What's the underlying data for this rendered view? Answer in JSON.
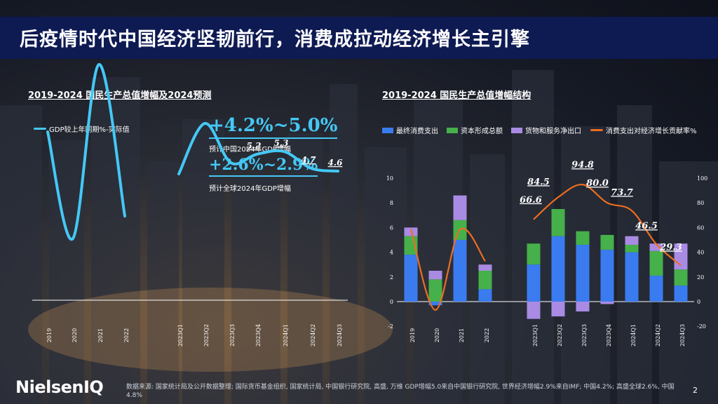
{
  "title": "后疫情时代中国经济坚韧前行，消费成拉动经济增长主引擎",
  "left": {
    "section_title": "2019-2024 国民生产总值增幅及2024预测",
    "legend_label": "GDP较上年同期%-实际值",
    "stat1": "+4.2%~5.0%",
    "stat1_caption": "预计中国2024年GDP增幅",
    "stat2": "+2.6%~2.9%",
    "stat2_caption": "预计全球2024年GDP增幅"
  },
  "right": {
    "section_title": "2019-2024 国民生产总值增幅结构",
    "legend": [
      "最终消费支出",
      "资本形成总额",
      "货物和服务净出口",
      "消费支出对经济增长贡献率%"
    ]
  },
  "colors": {
    "title_bar": "#0e1a52",
    "accent_cyan": "#44c8f5",
    "consumption": "#3a7bf0",
    "capital": "#46b04a",
    "netexport": "#a98be3",
    "contribution_line": "#ef6d1f"
  },
  "chart_data": [
    {
      "type": "line",
      "legend": "GDP较上年同期%-实际值",
      "categories": [
        "2019",
        "2020",
        "2021",
        "2022",
        "2023Q1",
        "2023Q2",
        "2023Q3",
        "2023Q4",
        "2024Q1",
        "2024Q2",
        "2024Q3"
      ],
      "values": [
        6.0,
        2.2,
        8.4,
        3.0,
        4.5,
        6.3,
        4.9,
        5.2,
        5.3,
        4.7,
        4.6
      ],
      "data_labels": {
        "2023Q4": "5.2",
        "2024Q1": "5.3",
        "2024Q2": "4.7",
        "2024Q3": "4.6"
      }
    },
    {
      "type": "bar",
      "stacked": true,
      "categories": [
        "2019",
        "2020",
        "2021",
        "2022",
        "2023Q1",
        "2023Q2",
        "2023Q3",
        "2023Q4",
        "2024Q1",
        "2024Q2",
        "2024Q3"
      ],
      "series": [
        {
          "name": "最终消费支出",
          "values": [
            3.8,
            -0.3,
            5.0,
            1.0,
            3.0,
            5.3,
            4.6,
            4.2,
            4.0,
            2.1,
            1.3
          ]
        },
        {
          "name": "资本形成总额",
          "values": [
            1.5,
            1.8,
            1.6,
            1.5,
            1.7,
            2.2,
            1.1,
            1.2,
            0.6,
            2.0,
            1.3
          ]
        },
        {
          "name": "货物和服务净出口",
          "values": [
            0.7,
            0.7,
            2.0,
            0.5,
            -1.4,
            -1.2,
            -0.8,
            -0.2,
            0.7,
            0.6,
            2.1
          ]
        }
      ],
      "line_series": {
        "name": "消费支出对经济增长贡献率%",
        "values": [
          58.6,
          -6.8,
          58.3,
          32.8,
          66.6,
          84.5,
          94.8,
          80.0,
          73.7,
          46.5,
          29.3
        ],
        "data_labels": {
          "2023Q1": "66.6",
          "2023Q2": "84.5",
          "2023Q3": "94.8",
          "2023Q4": "80.0",
          "2024Q1": "73.7",
          "2024Q2": "46.5",
          "2024Q3": "29.3"
        }
      },
      "y_left": {
        "ticks": [
          "-2",
          "0",
          "2",
          "4",
          "6",
          "8",
          "10"
        ],
        "ylim": [
          -2,
          10
        ]
      },
      "y_right": {
        "ticks": [
          "-20",
          "0",
          "20",
          "40",
          "60",
          "80",
          "100"
        ],
        "ylim": [
          -20,
          100
        ]
      }
    }
  ],
  "footer": "数据来源: 国家统计局及公开数据整理; 国际货币基金组织, 国家统计局, 中国银行研究院, 高盛, 万维 GDP增幅5.0来自中国银行研究院, 世界经济增幅2.9%来自IMF; 中国4.2%; 高盛全球2.6%, 中国4.8%",
  "logo": "NielsenIQ",
  "page_number": "2"
}
